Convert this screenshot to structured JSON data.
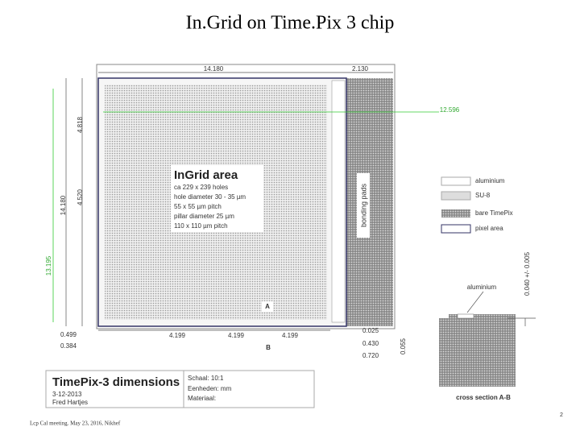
{
  "title": "In.Grid on Time.Pix 3 chip",
  "drawing": {
    "dim_top_width": "14.180",
    "dim_top_pads": "2.130",
    "dim_offset": "12.596",
    "dim_upper": "4.818",
    "dim_lower": "4.520",
    "dim_height": "14.180",
    "dim_total": "13.195",
    "dim_left_a": "0.499",
    "dim_left_b": "0.384",
    "dim_cols": [
      "4.199",
      "4.199",
      "4.199"
    ],
    "label_a": "A",
    "label_b": "B",
    "dim_right": [
      "0.025",
      "0.430",
      "0.720"
    ],
    "dim_edge": "0.055",
    "bonding_pads": "bonding pads"
  },
  "ingrid_box": {
    "title": "InGrid area",
    "lines": [
      "ca 229 x 239 holes",
      "hole diameter 30 - 35 µm",
      "55 x 55 µm pitch",
      "pillar diameter 25 µm",
      "110 x 110 µm pitch"
    ]
  },
  "legend": [
    "aluminium",
    "SU-8",
    "bare TimePix",
    "pixel area"
  ],
  "cross_section": {
    "thickness": "0.040 +/- 0.005",
    "material": "aluminium",
    "caption": "cross section A-B"
  },
  "title_block": {
    "name": "TimePix-3 dimensions",
    "date": "3-12-2013",
    "author": "Fred Hartjes",
    "scale": "Schaal: 10:1",
    "units": "Eenheden: mm",
    "material": "Materiaal:"
  },
  "footer": {
    "meeting": "Lcp Cal meeting. May 23, 2016, Nikhef",
    "page": "2"
  }
}
